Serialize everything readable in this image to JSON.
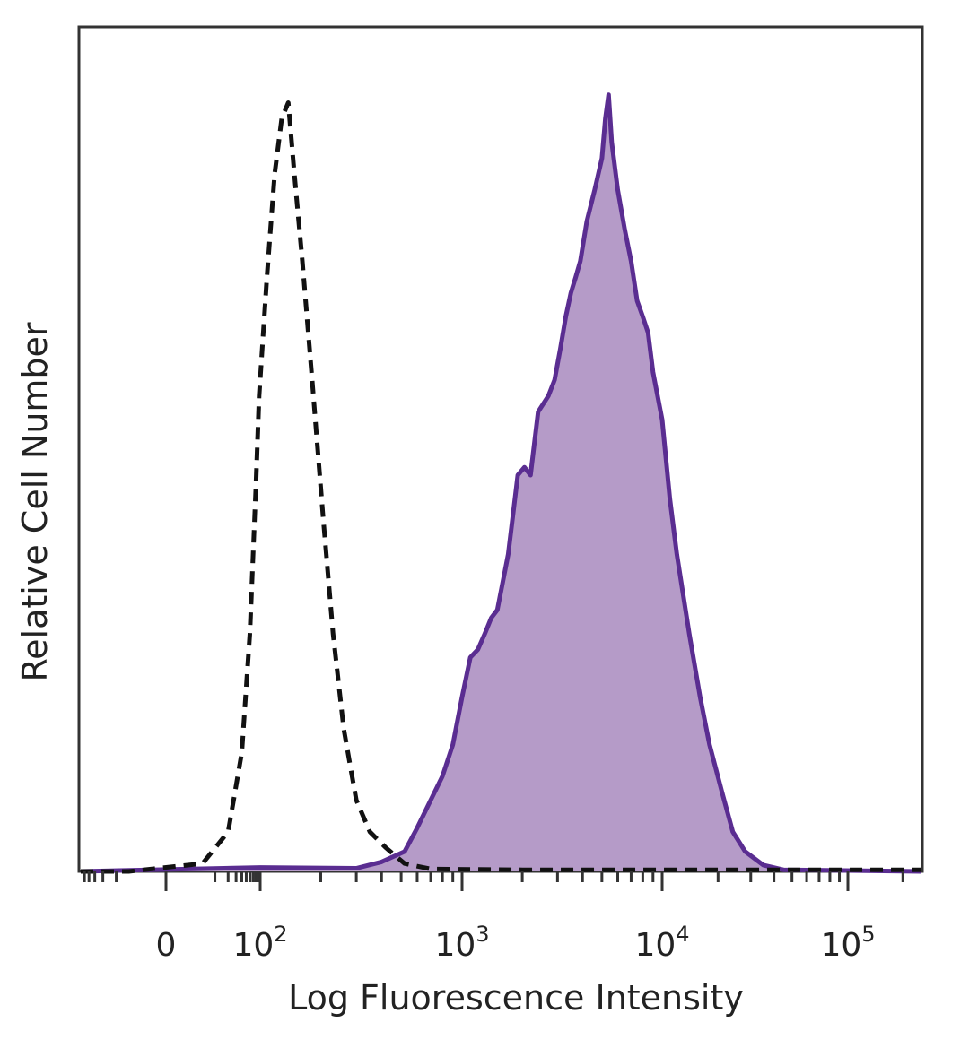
{
  "chart_data": {
    "type": "area",
    "xlabel": "Log Fluorescence Intensity",
    "ylabel": "Relative Cell Number",
    "x_scale": "biexponential",
    "x_ticks": [
      {
        "value": 0,
        "base": "0",
        "exp": ""
      },
      {
        "value": 100,
        "base": "10",
        "exp": "2"
      },
      {
        "value": 1000,
        "base": "10",
        "exp": "3"
      },
      {
        "value": 10000,
        "base": "10",
        "exp": "4"
      },
      {
        "value": 100000,
        "base": "10",
        "exp": "5"
      }
    ],
    "ylim": [
      0,
      1
    ],
    "grid": false,
    "legend": "none",
    "series": [
      {
        "style": "dashed",
        "fill": false,
        "color": "#111111",
        "points": [
          [
            -60,
            0.0
          ],
          [
            -5,
            0.0
          ],
          [
            5,
            0.01
          ],
          [
            20,
            0.05
          ],
          [
            40,
            0.15
          ],
          [
            60,
            0.3
          ],
          [
            80,
            0.48
          ],
          [
            95,
            0.6
          ],
          [
            108,
            0.75
          ],
          [
            118,
            0.88
          ],
          [
            128,
            0.95
          ],
          [
            138,
            0.97
          ],
          [
            148,
            0.88
          ],
          [
            162,
            0.77
          ],
          [
            180,
            0.63
          ],
          [
            205,
            0.45
          ],
          [
            230,
            0.3
          ],
          [
            260,
            0.18
          ],
          [
            300,
            0.09
          ],
          [
            350,
            0.05
          ],
          [
            420,
            0.03
          ],
          [
            520,
            0.01
          ],
          [
            700,
            0.003
          ],
          [
            2000,
            0.002
          ],
          [
            250000,
            0.002
          ]
        ]
      },
      {
        "style": "solid",
        "fill": true,
        "color": "#5a2d91",
        "fill_color": "#b59bc8",
        "points": [
          [
            -60,
            0.0
          ],
          [
            100,
            0.005
          ],
          [
            300,
            0.004
          ],
          [
            400,
            0.012
          ],
          [
            520,
            0.025
          ],
          [
            600,
            0.055
          ],
          [
            700,
            0.09
          ],
          [
            800,
            0.12
          ],
          [
            900,
            0.16
          ],
          [
            1000,
            0.22
          ],
          [
            1100,
            0.27
          ],
          [
            1200,
            0.28
          ],
          [
            1300,
            0.3
          ],
          [
            1400,
            0.32
          ],
          [
            1500,
            0.33
          ],
          [
            1700,
            0.4
          ],
          [
            1900,
            0.5
          ],
          [
            2050,
            0.51
          ],
          [
            2200,
            0.5
          ],
          [
            2400,
            0.58
          ],
          [
            2700,
            0.6
          ],
          [
            2900,
            0.62
          ],
          [
            3100,
            0.66
          ],
          [
            3300,
            0.7
          ],
          [
            3500,
            0.73
          ],
          [
            3700,
            0.75
          ],
          [
            3900,
            0.77
          ],
          [
            4200,
            0.82
          ],
          [
            4600,
            0.86
          ],
          [
            5000,
            0.9
          ],
          [
            5200,
            0.95
          ],
          [
            5400,
            0.98
          ],
          [
            5600,
            0.92
          ],
          [
            6000,
            0.86
          ],
          [
            6500,
            0.81
          ],
          [
            7000,
            0.77
          ],
          [
            7500,
            0.72
          ],
          [
            8000,
            0.7
          ],
          [
            8500,
            0.68
          ],
          [
            9000,
            0.63
          ],
          [
            10000,
            0.57
          ],
          [
            11000,
            0.47
          ],
          [
            12000,
            0.4
          ],
          [
            14000,
            0.3
          ],
          [
            16000,
            0.22
          ],
          [
            18000,
            0.16
          ],
          [
            21000,
            0.1
          ],
          [
            24000,
            0.05
          ],
          [
            28000,
            0.025
          ],
          [
            35000,
            0.008
          ],
          [
            45000,
            0.002
          ],
          [
            250000,
            0.0
          ]
        ]
      }
    ]
  }
}
